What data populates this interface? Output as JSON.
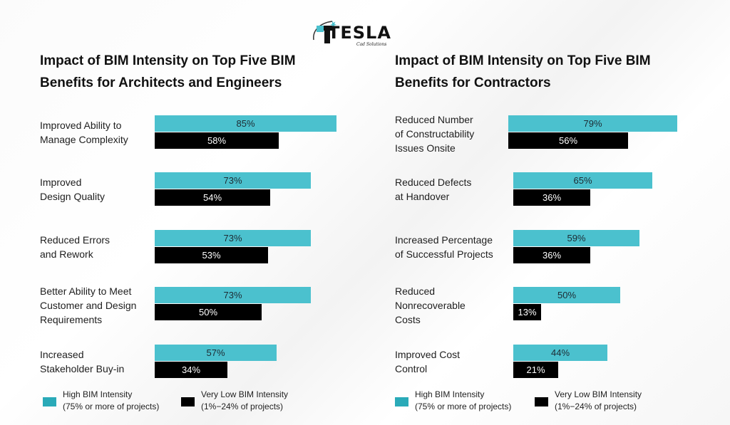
{
  "logo": {
    "name": "TESLA",
    "tagline": "Cad Solutions"
  },
  "colors": {
    "high": "#4bc1ce",
    "low": "#000000",
    "legend_high": "#2aaab8"
  },
  "legend": {
    "high_line1": "High BIM Intensity",
    "high_line2": "(75% or more of projects)",
    "low_line1": "Very Low BIM Intensity",
    "low_line2": "(1%−24% of projects)"
  },
  "chart_data": [
    {
      "type": "bar",
      "orientation": "horizontal",
      "title": "Impact of BIM Intensity on Top Five BIM Benefits for Architects and Engineers",
      "categories": [
        [
          "Improved Ability to",
          "Manage Complexity"
        ],
        [
          "Improved",
          "Design Quality"
        ],
        [
          "Reduced Errors",
          "and Rework"
        ],
        [
          "Better Ability to Meet",
          "Customer and Design",
          "Requirements"
        ],
        [
          "Increased",
          "Stakeholder Buy-in"
        ]
      ],
      "series": [
        {
          "name": "High BIM Intensity (75% or more of projects)",
          "values": [
            85,
            73,
            73,
            73,
            57
          ],
          "labels": [
            "85%",
            "73%",
            "73%",
            "73%",
            "57%"
          ]
        },
        {
          "name": "Very Low BIM Intensity (1%–24% of projects)",
          "values": [
            58,
            54,
            53,
            50,
            34
          ],
          "labels": [
            "58%",
            "54%",
            "53%",
            "50%",
            "34%"
          ]
        }
      ],
      "xlim": [
        0,
        100
      ],
      "grid": false,
      "legend_position": "bottom"
    },
    {
      "type": "bar",
      "orientation": "horizontal",
      "title": "Impact of BIM Intensity on Top Five BIM Benefits for Contractors",
      "categories": [
        [
          "Reduced Number",
          "of Constructability",
          "Issues Onsite"
        ],
        [
          "Reduced Defects",
          "at Handover"
        ],
        [
          "Increased Percentage",
          "of Successful Projects"
        ],
        [
          "Reduced",
          "Nonrecoverable",
          "Costs"
        ],
        [
          "Improved Cost",
          "Control"
        ]
      ],
      "series": [
        {
          "name": "High BIM Intensity (75% or more of projects)",
          "values": [
            79,
            65,
            59,
            50,
            44
          ],
          "labels": [
            "79%",
            "65%",
            "59%",
            "50%",
            "44%"
          ]
        },
        {
          "name": "Very Low BIM Intensity (1%–24% of projects)",
          "values": [
            56,
            36,
            36,
            13,
            21
          ],
          "labels": [
            "56%",
            "36%",
            "36%",
            "13%",
            "21%"
          ]
        }
      ],
      "xlim": [
        0,
        100
      ],
      "grid": false,
      "legend_position": "bottom"
    }
  ]
}
